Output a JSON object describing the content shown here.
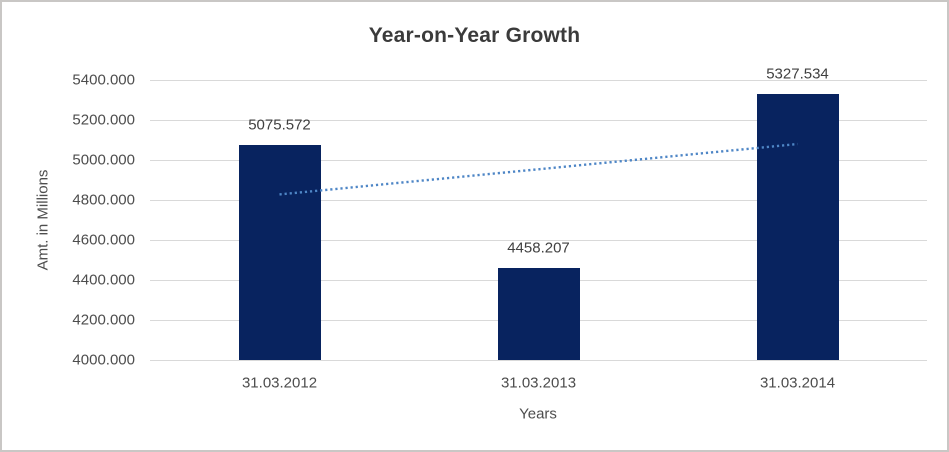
{
  "window": {
    "background": "#ffffff",
    "border_color": "#c9c7c5"
  },
  "chart_data": {
    "type": "bar",
    "title": "Year-on-Year Growth",
    "categories": [
      "31.03.2012",
      "31.03.2013",
      "31.03.2014"
    ],
    "values": [
      5075.572,
      4458.207,
      5327.534
    ],
    "data_labels": [
      "5075.572",
      "4458.207",
      "5327.534"
    ],
    "xlabel": "Years",
    "ylabel": "Amt. in Millions",
    "ylim": [
      4000,
      5400
    ],
    "ytick_step": 200,
    "ytick_labels": [
      "5400.000",
      "5200.000",
      "5000.000",
      "4800.000",
      "4600.000",
      "4400.000",
      "4200.000",
      "4000.000"
    ],
    "grid": true,
    "legend": "none",
    "trendline": {
      "type": "linear",
      "style": "dotted",
      "color": "#4e86c6",
      "endpoint_values": [
        4827.8,
        5079.8
      ]
    },
    "colors": {
      "bar": "#08235f",
      "gridline": "#d9d9d9",
      "title_text": "#3b3b3b",
      "axis_text": "#4d4d4d",
      "background": "#ffffff"
    }
  }
}
